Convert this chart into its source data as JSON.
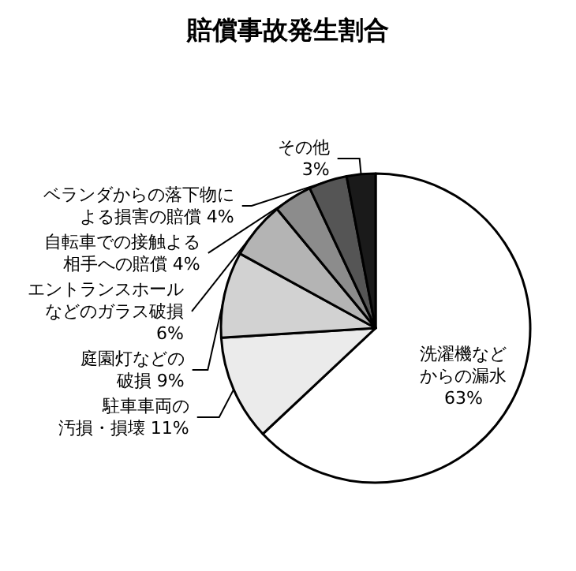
{
  "chart_data": {
    "type": "pie",
    "title": "賠償事故発生割合",
    "categories": [
      "洗濯機などからの漏水",
      "駐車車両の汚損・損壊",
      "庭園灯などの破損",
      "エントランスホールなどのガラス破損",
      "自転車での接触よる相手への賠償",
      "ベランダからの落下物による損害の賠償",
      "その他"
    ],
    "values": [
      63,
      11,
      9,
      6,
      4,
      4,
      3
    ],
    "value_labels": [
      "63%",
      "11%",
      "9%",
      "6%",
      "4%",
      "4%",
      "3%"
    ],
    "colors": [
      "#ffffff",
      "#ebebeb",
      "#d2d2d2",
      "#b4b4b4",
      "#8c8c8c",
      "#555555",
      "#1a1a1a"
    ],
    "legend": false
  }
}
